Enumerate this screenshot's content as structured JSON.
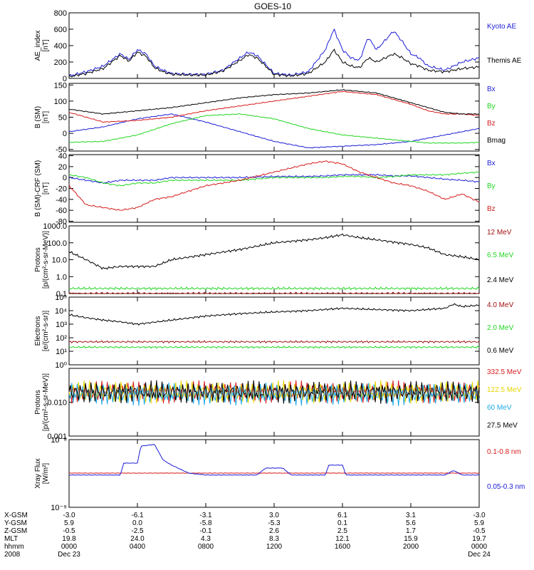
{
  "title": "GOES-10",
  "colors": {
    "black": "#000000",
    "blue": "#1c1cd6",
    "green": "#22d622",
    "red": "#d61c1c",
    "darkred": "#a01010",
    "yellow": "#e6d600",
    "cyan": "#1ca8e6"
  },
  "chart_data": [
    {
      "type": "line",
      "panel": "ae",
      "ylabel": [
        "AE_index",
        "[nT]"
      ],
      "ylim": [
        0,
        800
      ],
      "yticks": [
        "800",
        "600",
        "400",
        "200",
        "0"
      ],
      "ytick_values": [
        800,
        600,
        400,
        200,
        0
      ],
      "x_hours": [
        0,
        1,
        2,
        3,
        3.5,
        4,
        4.5,
        5,
        5.5,
        6,
        7,
        8,
        9,
        10,
        10.5,
        11,
        12,
        13,
        14,
        15,
        15.5,
        16,
        16.5,
        17,
        17.5,
        18,
        19,
        19.5,
        20,
        20.5,
        21,
        22,
        23,
        24
      ],
      "series": [
        {
          "name": "Kyoto AE",
          "color": "blue",
          "values": [
            30,
            80,
            150,
            300,
            230,
            350,
            300,
            150,
            100,
            60,
            50,
            50,
            100,
            250,
            320,
            280,
            60,
            40,
            80,
            350,
            600,
            350,
            250,
            220,
            500,
            350,
            580,
            450,
            300,
            250,
            150,
            100,
            200,
            250
          ]
        },
        {
          "name": "Themis AE",
          "color": "black",
          "values": [
            20,
            60,
            120,
            280,
            210,
            320,
            270,
            130,
            80,
            50,
            40,
            40,
            90,
            220,
            290,
            250,
            50,
            30,
            60,
            200,
            350,
            200,
            150,
            130,
            250,
            200,
            300,
            250,
            180,
            150,
            100,
            80,
            120,
            140
          ]
        }
      ]
    },
    {
      "type": "line",
      "panel": "b_sm",
      "ylabel": [
        "B (SM)",
        "[nT]"
      ],
      "ylim": [
        -55,
        155
      ],
      "yticks": [
        "150",
        "100",
        "50",
        "0",
        "-50"
      ],
      "ytick_values": [
        150,
        100,
        50,
        0,
        -50
      ],
      "x_hours": [
        0,
        2,
        4,
        6,
        8,
        10,
        12,
        14,
        16,
        18,
        20,
        21,
        22,
        23,
        24
      ],
      "series": [
        {
          "name": "Bx",
          "color": "blue",
          "values": [
            5,
            20,
            45,
            60,
            35,
            5,
            -25,
            -45,
            -40,
            -35,
            -25,
            -15,
            -5,
            5,
            15
          ]
        },
        {
          "name": "By",
          "color": "green",
          "values": [
            -28,
            -25,
            -5,
            30,
            55,
            60,
            45,
            15,
            -5,
            -15,
            -25,
            -30,
            -30,
            -30,
            -28
          ]
        },
        {
          "name": "Bz",
          "color": "red",
          "values": [
            65,
            35,
            40,
            50,
            70,
            85,
            100,
            115,
            130,
            120,
            90,
            70,
            60,
            60,
            55
          ]
        },
        {
          "name": "Bmag",
          "color": "black",
          "values": [
            75,
            60,
            70,
            80,
            95,
            110,
            120,
            125,
            135,
            125,
            95,
            80,
            65,
            60,
            60
          ]
        }
      ]
    },
    {
      "type": "line",
      "panel": "b_residual",
      "ylabel": [
        "B (SM)-CRF (SM)",
        "[nT]"
      ],
      "ylim": [
        -82,
        42
      ],
      "yticks": [
        "40",
        "20",
        "0",
        "-20",
        "-40",
        "-60",
        "-80"
      ],
      "ytick_values": [
        40,
        20,
        0,
        -20,
        -40,
        -60,
        -80
      ],
      "x_hours": [
        0,
        1,
        2,
        3,
        4,
        5,
        6,
        8,
        10,
        12,
        14,
        15,
        16,
        17,
        18,
        19,
        20,
        21,
        22,
        23,
        24
      ],
      "series": [
        {
          "name": "Bx",
          "color": "blue",
          "values": [
            0,
            -5,
            -10,
            -5,
            -5,
            -5,
            0,
            0,
            0,
            2,
            2,
            3,
            5,
            5,
            5,
            3,
            3,
            0,
            -3,
            -5,
            -8
          ]
        },
        {
          "name": "By",
          "color": "green",
          "values": [
            5,
            0,
            -10,
            -15,
            -10,
            -10,
            -5,
            -5,
            -5,
            0,
            0,
            0,
            2,
            2,
            0,
            2,
            5,
            5,
            5,
            8,
            10
          ]
        },
        {
          "name": "Bz",
          "color": "red",
          "values": [
            -15,
            -50,
            -55,
            -60,
            -55,
            -40,
            -35,
            -15,
            -5,
            10,
            25,
            30,
            25,
            10,
            0,
            -10,
            -15,
            -25,
            -40,
            -30,
            -45
          ]
        }
      ]
    },
    {
      "type": "line",
      "panel": "protons_low",
      "yscale": "log",
      "ylabel": [
        "Protons",
        "[p/(cm²-s-sr-MeV)]"
      ],
      "ylim": [
        0.1,
        1000
      ],
      "yticks": [
        "1000.0",
        "100.0",
        "10.0",
        "1.0",
        "0.1"
      ],
      "ytick_values": [
        1000,
        100,
        10,
        1,
        0.1
      ],
      "x_hours": [
        0,
        1,
        2,
        3,
        4,
        5,
        6,
        8,
        10,
        12,
        14,
        15,
        16,
        17,
        18,
        20,
        21,
        22,
        23,
        24
      ],
      "series": [
        {
          "name": "12 MeV",
          "color": "darkred",
          "values": [
            0.1,
            0.1,
            0.1,
            0.1,
            0.1,
            0.1,
            0.1,
            0.1,
            0.1,
            0.1,
            0.1,
            0.1,
            0.1,
            0.1,
            0.1,
            0.1,
            0.1,
            0.1,
            0.1,
            0.1
          ]
        },
        {
          "name": "6.5 MeV",
          "color": "green",
          "values": [
            0.2,
            0.2,
            0.2,
            0.2,
            0.2,
            0.2,
            0.2,
            0.2,
            0.2,
            0.2,
            0.2,
            0.2,
            0.2,
            0.2,
            0.2,
            0.2,
            0.2,
            0.2,
            0.2,
            0.2
          ]
        },
        {
          "name": "2.4 MeV",
          "color": "black",
          "values": [
            30,
            10,
            3,
            4,
            4,
            4,
            10,
            20,
            40,
            100,
            150,
            200,
            300,
            200,
            150,
            80,
            50,
            20,
            15,
            10
          ]
        }
      ]
    },
    {
      "type": "line",
      "panel": "electrons",
      "yscale": "log",
      "ylabel": [
        "Electrons",
        "[e/(cm²-s-sr)]"
      ],
      "ylim": [
        1,
        100000
      ],
      "yticks": [
        "10⁵",
        "10⁴",
        "10³",
        "10²",
        "10¹",
        "10⁰"
      ],
      "ytick_values": [
        100000,
        10000,
        1000,
        100,
        10,
        1
      ],
      "x_hours": [
        0,
        1,
        2,
        3,
        4,
        6,
        8,
        10,
        12,
        14,
        16,
        18,
        20,
        22,
        22.5,
        23,
        24
      ],
      "series": [
        {
          "name": "4.0 MeV",
          "color": "darkred",
          "values": [
            50,
            50,
            50,
            50,
            50,
            50,
            50,
            50,
            50,
            50,
            50,
            50,
            50,
            50,
            50,
            50,
            50
          ]
        },
        {
          "name": "2.0 MeV",
          "color": "green",
          "values": [
            20,
            20,
            20,
            20,
            20,
            20,
            20,
            20,
            20,
            20,
            20,
            20,
            20,
            20,
            20,
            20,
            20
          ]
        },
        {
          "name": "0.6 MeV",
          "color": "black",
          "values": [
            5000,
            3000,
            2000,
            1500,
            1000,
            2000,
            4000,
            6000,
            8000,
            10000,
            15000,
            12000,
            10000,
            15000,
            30000,
            20000,
            25000
          ]
        }
      ]
    },
    {
      "type": "line",
      "panel": "protons_high",
      "yscale": "log",
      "ylabel": [
        "Protons",
        "[p/(cm²-s-sr-MeV)]"
      ],
      "ylim": [
        0.001,
        0.1
      ],
      "yticks": [
        "0.010",
        "0.001"
      ],
      "ytick_values": [
        0.01,
        0.001
      ],
      "x_hours": [
        0,
        24
      ],
      "series": [
        {
          "name": "332.5 MeV",
          "color": "red",
          "values": [
            0.02,
            0.02
          ]
        },
        {
          "name": "122.5 MeV",
          "color": "yellow",
          "values": [
            0.02,
            0.02
          ]
        },
        {
          "name": "60 MeV",
          "color": "cyan",
          "values": [
            0.017,
            0.017
          ]
        },
        {
          "name": "27.5 MeV",
          "color": "black",
          "values": [
            0.02,
            0.02
          ]
        }
      ]
    },
    {
      "type": "line",
      "panel": "xray",
      "yscale": "log",
      "ylabel": [
        "Xray Flux",
        "[W/m²]"
      ],
      "ylim": [
        1e-09,
        1e-08
      ],
      "yticks": [
        "10⁻⁸",
        "10⁻⁹"
      ],
      "ytick_values": [
        1e-08,
        1e-09
      ],
      "x_hours": [
        0,
        3,
        3.2,
        4,
        4.2,
        5,
        5.5,
        6,
        7,
        8,
        11,
        11.5,
        12.5,
        13,
        15,
        15.2,
        16,
        16.2,
        22,
        22.5,
        23,
        24
      ],
      "series": [
        {
          "name": "0.1-0.8 nm",
          "color": "red",
          "values": [
            3.2e-09,
            3.2e-09,
            3.2e-09,
            3.2e-09,
            3.2e-09,
            3.2e-09,
            3.2e-09,
            3.2e-09,
            3.2e-09,
            3.2e-09,
            3.2e-09,
            3.2e-09,
            3.2e-09,
            3.2e-09,
            3.2e-09,
            3.2e-09,
            3.2e-09,
            3.2e-09,
            3.2e-09,
            3.2e-09,
            3.2e-09,
            3.2e-09
          ]
        },
        {
          "name": "0.05-0.3 nm",
          "color": "blue",
          "values": [
            3e-09,
            3e-09,
            4.5e-09,
            4.5e-09,
            8e-09,
            8.5e-09,
            5e-09,
            4.2e-09,
            3.2e-09,
            3e-09,
            3e-09,
            3.8e-09,
            3.8e-09,
            3e-09,
            3e-09,
            4.2e-09,
            4.2e-09,
            3e-09,
            3e-09,
            3.5e-09,
            3e-09,
            3e-09
          ]
        }
      ]
    }
  ],
  "legend_labels": {
    "ae": [
      "Kyoto AE",
      "Themis AE"
    ],
    "b_sm": [
      "Bx",
      "By",
      "Bz",
      "Bmag"
    ],
    "b_residual": [
      "Bx",
      "By",
      "Bz"
    ],
    "protons_low": [
      "12 MeV",
      "6.5 MeV",
      "2.4 MeV"
    ],
    "electrons": [
      "4.0 MeV",
      "2.0 MeV",
      "0.6 MeV"
    ],
    "protons_high": [
      "332.5 MeV",
      "122.5 MeV",
      "60 MeV",
      "27.5 MeV"
    ],
    "xray": [
      "0.1-0.8 nm",
      "0.05-0.3 nm"
    ]
  },
  "time_axis": {
    "row_labels": [
      "X-GSM",
      "Y-GSM",
      "Z-GSM",
      "MLT",
      "hhmm",
      "2008"
    ],
    "columns": [
      {
        "hour": 0,
        "values": [
          "-3.0",
          "5.9",
          "-0.5",
          "19.8",
          "0000",
          "Dec 23"
        ]
      },
      {
        "hour": 4,
        "values": [
          "-6.1",
          "0.0",
          "-2.5",
          "24.0",
          "0400",
          ""
        ]
      },
      {
        "hour": 8,
        "values": [
          "-3.1",
          "-5.8",
          "-0.1",
          "4.3",
          "0800",
          ""
        ]
      },
      {
        "hour": 12,
        "values": [
          "3.0",
          "-5.3",
          "2.6",
          "8.3",
          "1200",
          ""
        ]
      },
      {
        "hour": 16,
        "values": [
          "6.1",
          "0.1",
          "2.5",
          "12.1",
          "1600",
          ""
        ]
      },
      {
        "hour": 20,
        "values": [
          "3.1",
          "5.6",
          "1.7",
          "15.9",
          "2000",
          ""
        ]
      },
      {
        "hour": 24,
        "values": [
          "-3.0",
          "5.9",
          "-0.5",
          "19.7",
          "0000",
          "Dec 24"
        ]
      }
    ]
  }
}
